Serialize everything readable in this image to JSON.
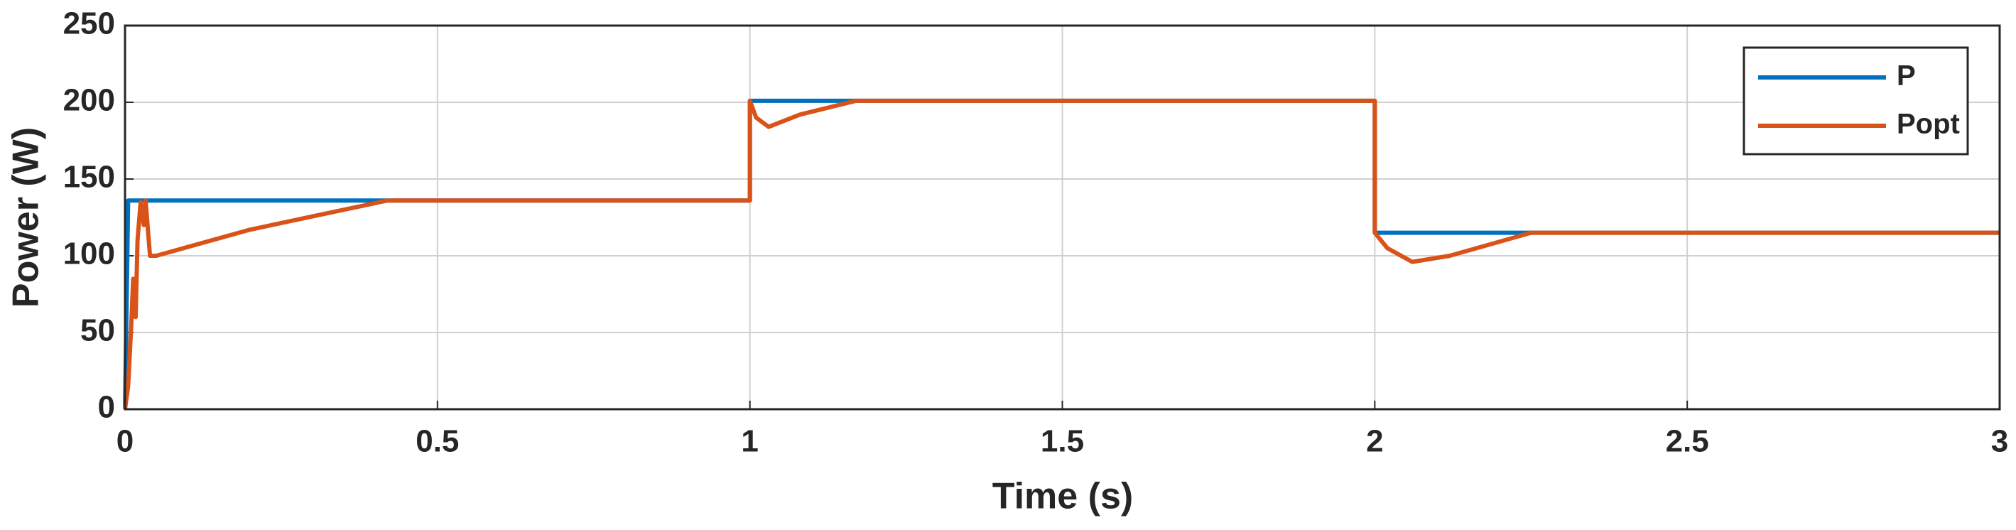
{
  "chart_data": {
    "type": "line",
    "xlabel": "Time (s)",
    "ylabel": "Power (W)",
    "xlim": [
      0,
      3
    ],
    "ylim": [
      0,
      250
    ],
    "xticks": [
      0,
      0.5,
      1,
      1.5,
      2,
      2.5,
      3
    ],
    "yticks": [
      0,
      50,
      100,
      150,
      200,
      250
    ],
    "grid": true,
    "legend": "upper right",
    "series": [
      {
        "name": "P",
        "color": "#0072bd",
        "x": [
          0,
          0.005,
          1.0,
          1.0,
          2.0,
          2.0,
          3.0
        ],
        "values": [
          0,
          136,
          136,
          201,
          201,
          115,
          115
        ]
      },
      {
        "name": "Popt",
        "color": "#d95319",
        "x": [
          0,
          0.005,
          0.01,
          0.013,
          0.017,
          0.02,
          0.025,
          0.03,
          0.033,
          0.037,
          0.04,
          0.05,
          0.2,
          0.42,
          1.0,
          1.0,
          1.01,
          1.03,
          1.08,
          1.17,
          2.0,
          2.0,
          2.02,
          2.06,
          2.12,
          2.25,
          3.0
        ],
        "values": [
          0,
          15,
          55,
          85,
          60,
          110,
          135,
          120,
          136,
          115,
          100,
          100,
          117,
          136,
          136,
          201,
          190,
          184,
          192,
          201,
          201,
          115,
          105,
          96,
          100,
          115,
          115
        ]
      }
    ]
  }
}
